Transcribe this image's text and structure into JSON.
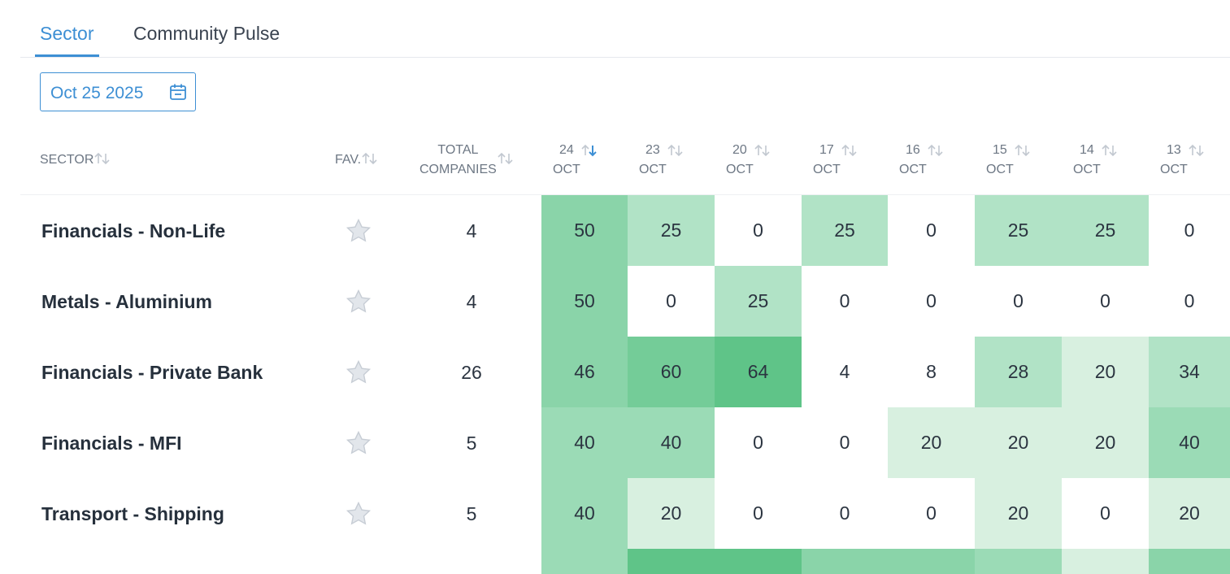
{
  "tabs": [
    {
      "label": "Sector",
      "active": true
    },
    {
      "label": "Community Pulse",
      "active": false
    }
  ],
  "date_picker": {
    "value": "Oct 25 2025",
    "icon": "calendar-icon"
  },
  "columns": {
    "sector": "SECTOR",
    "fav": "FAV.",
    "total_line1": "TOTAL",
    "total_line2": "COMPANIES",
    "dates": [
      {
        "day": "24",
        "month": "OCT",
        "sorted": "desc"
      },
      {
        "day": "23",
        "month": "OCT"
      },
      {
        "day": "20",
        "month": "OCT"
      },
      {
        "day": "17",
        "month": "OCT"
      },
      {
        "day": "16",
        "month": "OCT"
      },
      {
        "day": "15",
        "month": "OCT"
      },
      {
        "day": "14",
        "month": "OCT"
      },
      {
        "day": "13",
        "month": "OCT"
      }
    ]
  },
  "rows": [
    {
      "sector": "Financials - Non-Life",
      "total": "4",
      "values": [
        50,
        25,
        0,
        25,
        0,
        25,
        25,
        0
      ]
    },
    {
      "sector": "Metals - Aluminium",
      "total": "4",
      "values": [
        50,
        0,
        25,
        0,
        0,
        0,
        0,
        0
      ]
    },
    {
      "sector": "Financials - Private Bank",
      "total": "26",
      "values": [
        46,
        60,
        64,
        4,
        8,
        28,
        20,
        34
      ]
    },
    {
      "sector": "Financials - MFI",
      "total": "5",
      "values": [
        40,
        40,
        0,
        0,
        20,
        20,
        20,
        40
      ]
    },
    {
      "sector": "Transport - Shipping",
      "total": "5",
      "values": [
        40,
        20,
        0,
        0,
        0,
        20,
        0,
        20
      ]
    }
  ],
  "colors": {
    "accent": "#3d8fd4",
    "heat_light": "#d8f0e0",
    "heat_mid": "#b1e3c6",
    "heat_strong": "#8ad4a9",
    "heat_stronger": "#75cc99",
    "heat_strongest": "#5fc488"
  }
}
